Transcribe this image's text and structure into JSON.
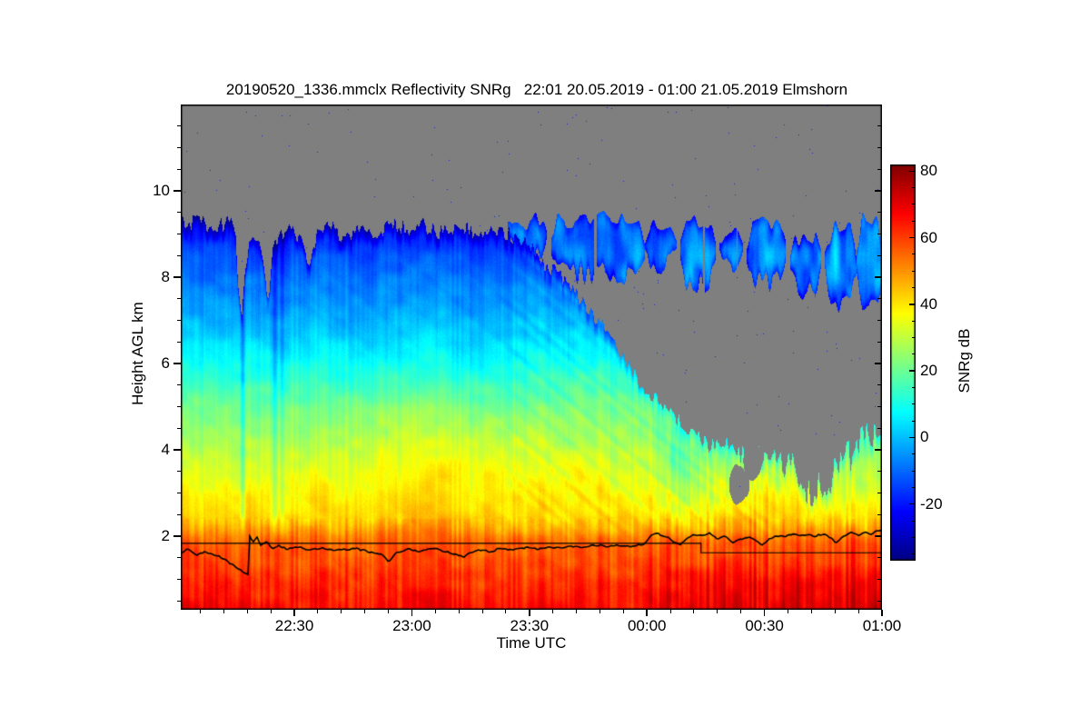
{
  "title": "20190520_1336.mmclx Reflectivity SNRg   22:01 20.05.2019 - 01:00 21.05.2019 Elmshorn",
  "axes": {
    "x": {
      "label": "Time UTC",
      "start_time": "22:01 20.05.2019",
      "end_time": "01:00 21.05.2019",
      "range_minutes": [
        0,
        179
      ],
      "major_ticks": [
        {
          "minute": 29,
          "label": "22:30"
        },
        {
          "minute": 59,
          "label": "23:00"
        },
        {
          "minute": 89,
          "label": "23:30"
        },
        {
          "minute": 119,
          "label": "00:00"
        },
        {
          "minute": 149,
          "label": "00:30"
        },
        {
          "minute": 179,
          "label": "01:00"
        }
      ],
      "minor_tick_step_minutes": 6
    },
    "y": {
      "label": "Height AGL km",
      "range_km": [
        0.3,
        12.0
      ],
      "major_ticks": [
        2,
        4,
        6,
        8,
        10
      ],
      "minor_tick_step_km": 0.5
    }
  },
  "colorbar": {
    "label": "SNRg dB",
    "range_db": [
      -37,
      82
    ],
    "major_ticks": [
      80,
      60,
      40,
      20,
      0,
      -20
    ],
    "minor_tick_step_db": 5,
    "colormap": "jet"
  },
  "chart_data": {
    "type": "heatmap",
    "title": "20190520_1336.mmclx Reflectivity SNRg   22:01 20.05.2019 - 01:00 21.05.2019 Elmshorn",
    "xlabel": "Time UTC",
    "ylabel": "Height AGL km",
    "value_label": "SNRg dB",
    "x_range_minutes": [
      0,
      179
    ],
    "y_range_km": [
      0.3,
      12.0
    ],
    "value_range_db": [
      -37,
      82
    ],
    "nodata_color": "#7f7f7f",
    "speckle_color": "#1428d2",
    "snr_profile": {
      "h_km": [
        0.3,
        1.0,
        1.5,
        2.0,
        2.5,
        3.0,
        3.5,
        4.0,
        4.5,
        5.0,
        5.5,
        6.0,
        6.5,
        7.0,
        7.5,
        8.0,
        8.5,
        9.0,
        9.4
      ],
      "snr_db": [
        66,
        62,
        57,
        50,
        42,
        38,
        34,
        29,
        25,
        21,
        15,
        9,
        4,
        -1,
        -5,
        -9,
        -13,
        -18,
        -24
      ]
    },
    "cloud_top_km": {
      "t_min": [
        0,
        4,
        8,
        12,
        14,
        14.8,
        15.6,
        16.4,
        18,
        20,
        21.5,
        22.5,
        23.5,
        25,
        28,
        31,
        33,
        35,
        38,
        42,
        46,
        50,
        54,
        58,
        62,
        66,
        70,
        74,
        78,
        82,
        86,
        89,
        93,
        97,
        101,
        105,
        109,
        113,
        117,
        121,
        125,
        129,
        133,
        137,
        140,
        143,
        146,
        149,
        152,
        155,
        158,
        161,
        164,
        167,
        170,
        173,
        176,
        179
      ],
      "h_km": [
        9.25,
        9.3,
        9.15,
        9.25,
        9.2,
        7.6,
        7.0,
        8.2,
        9.05,
        8.9,
        8.0,
        7.5,
        8.6,
        9.0,
        9.1,
        8.8,
        8.35,
        9.0,
        9.15,
        8.9,
        9.2,
        9.05,
        9.25,
        9.1,
        9.2,
        9.05,
        9.2,
        9.1,
        9.0,
        9.1,
        8.9,
        8.75,
        8.3,
        8.0,
        7.6,
        7.1,
        6.7,
        6.1,
        5.6,
        5.2,
        4.8,
        4.5,
        4.2,
        4.05,
        4.2,
        3.9,
        4.1,
        3.8,
        3.6,
        3.8,
        3.3,
        3.0,
        3.2,
        3.5,
        3.8,
        4.1,
        4.3,
        4.5
      ]
    },
    "upper_layer_patches": [
      [
        84,
        93,
        8.6,
        9.3
      ],
      [
        95,
        118,
        8.1,
        9.35
      ],
      [
        119,
        126,
        8.3,
        9.15
      ],
      [
        128,
        136,
        7.9,
        9.25
      ],
      [
        138,
        143,
        8.3,
        9.0
      ],
      [
        145,
        154,
        7.9,
        9.3
      ],
      [
        156,
        163,
        7.7,
        8.95
      ],
      [
        165,
        172,
        7.4,
        9.1
      ],
      [
        173,
        179,
        7.3,
        9.3
      ]
    ],
    "clear_holes": [
      {
        "t": 142.5,
        "h": 3.2,
        "rt": 2.4,
        "rh": 0.45
      },
      {
        "t": 146.0,
        "h": 3.75,
        "rt": 2.2,
        "rh": 0.42
      }
    ],
    "fall_streaks": [
      {
        "t": 15.8,
        "w": 0.6,
        "amp": 15
      },
      {
        "t": 24.1,
        "w": 0.7,
        "amp": 11
      },
      {
        "t": 25.9,
        "w": 0.5,
        "amp": 8
      },
      {
        "t": 74.0,
        "w": 0.5,
        "amp": 4
      },
      {
        "t": 83.7,
        "w": 0.5,
        "amp": 4
      }
    ],
    "melting_layer_line_km": {
      "t_min": [
        0,
        2,
        4,
        6,
        8,
        10,
        12,
        14,
        16,
        17.3,
        17.5,
        18.5,
        19.5,
        20.5,
        22,
        23,
        25,
        27,
        30,
        33,
        36,
        39,
        42,
        45,
        48,
        51,
        53,
        55,
        58,
        61,
        64,
        67,
        70,
        72,
        74,
        76,
        79,
        82,
        85,
        88,
        91,
        94,
        97,
        100,
        103,
        106,
        109,
        112,
        115,
        118,
        120,
        122,
        124,
        126,
        127.5,
        129,
        131,
        133,
        135,
        137,
        139,
        141,
        143,
        145,
        147,
        148.5,
        150,
        152,
        154,
        156,
        158,
        160,
        162,
        164,
        166,
        167.5,
        169,
        171,
        173,
        175,
        176.5,
        178,
        179
      ],
      "h_km": [
        1.62,
        1.7,
        1.56,
        1.65,
        1.6,
        1.52,
        1.42,
        1.3,
        1.18,
        1.1,
        2.02,
        1.85,
        1.98,
        1.78,
        1.88,
        1.72,
        1.78,
        1.7,
        1.75,
        1.68,
        1.74,
        1.66,
        1.7,
        1.72,
        1.64,
        1.6,
        1.42,
        1.64,
        1.7,
        1.64,
        1.72,
        1.66,
        1.6,
        1.52,
        1.62,
        1.7,
        1.65,
        1.72,
        1.68,
        1.74,
        1.7,
        1.76,
        1.72,
        1.78,
        1.74,
        1.8,
        1.76,
        1.8,
        1.78,
        1.82,
        2.02,
        2.06,
        1.98,
        1.88,
        1.8,
        1.95,
        2.05,
        2.0,
        2.08,
        1.95,
        2.02,
        1.85,
        1.95,
        2.0,
        1.88,
        1.8,
        1.92,
        2.02,
        1.98,
        2.05,
        2.0,
        2.04,
        2.0,
        2.06,
        1.95,
        1.85,
        2.0,
        2.08,
        2.02,
        2.1,
        2.05,
        2.15,
        2.12
      ]
    },
    "threshold_line_km": {
      "segments": [
        {
          "t0": 0,
          "t1": 132.8,
          "h": 1.84
        },
        {
          "t0": 132.8,
          "t1": 179,
          "h": 1.62
        }
      ]
    }
  }
}
